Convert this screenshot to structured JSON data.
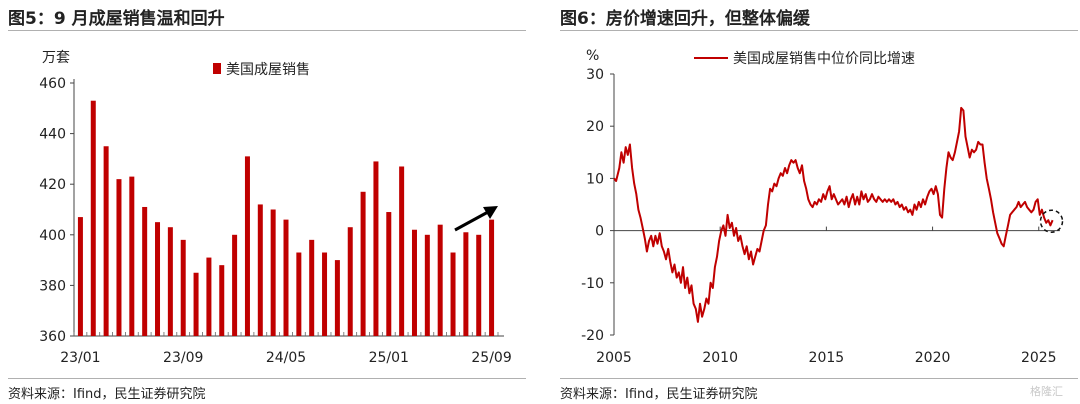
{
  "left": {
    "title": "图5：9 月成屋销售温和回升",
    "source": "资料来源：Ifind，民生证券研究院",
    "arrow_color": "#000000",
    "chart_data": {
      "type": "bar",
      "title": "",
      "ylabel": "万套",
      "ylim": [
        360,
        460
      ],
      "yticks": [
        360,
        380,
        400,
        420,
        440,
        460
      ],
      "xtick_labels": [
        "23/01",
        "23/09",
        "24/05",
        "25/01",
        "25/09"
      ],
      "xtick_indices": [
        0,
        8,
        16,
        24,
        32
      ],
      "legend_position": "top",
      "grid": false,
      "color": "#c00000",
      "categories": [
        "23/01",
        "23/02",
        "23/03",
        "23/04",
        "23/05",
        "23/06",
        "23/07",
        "23/08",
        "23/09",
        "23/10",
        "23/11",
        "23/12",
        "24/01",
        "24/02",
        "24/03",
        "24/04",
        "24/05",
        "24/06",
        "24/07",
        "24/08",
        "24/09",
        "24/10",
        "24/11",
        "24/12",
        "25/01",
        "25/02",
        "25/03",
        "25/04",
        "25/05",
        "25/06",
        "25/07",
        "25/08",
        "25/09"
      ],
      "series": [
        {
          "name": "美国成屋销售",
          "values": [
            407,
            453,
            435,
            422,
            423,
            411,
            405,
            403,
            398,
            385,
            391,
            388,
            400,
            431,
            412,
            410,
            406,
            393,
            398,
            393,
            390,
            403,
            417,
            429,
            409,
            427,
            402,
            400,
            404,
            393,
            401,
            400,
            406
          ]
        }
      ]
    }
  },
  "right": {
    "title": "图6：房价增速回升，但整体偏缓",
    "source": "资料来源：Ifind，民生证券研究院",
    "watermark": "格隆汇",
    "chart_data": {
      "type": "line",
      "title": "",
      "ylabel": "%",
      "ylim": [
        -20,
        30
      ],
      "yticks": [
        -20,
        -10,
        0,
        10,
        20,
        30
      ],
      "xlim": [
        2005,
        2026
      ],
      "xticks": [
        2005,
        2010,
        2015,
        2020,
        2025
      ],
      "legend_position": "top",
      "grid": false,
      "highlight_circle": {
        "x": 2025.6,
        "y": 1.8
      },
      "series": [
        {
          "name": "美国成屋销售中位价同比增速",
          "color": "#c00000",
          "points": [
            [
              2005.0,
              10
            ],
            [
              2005.1,
              9.5
            ],
            [
              2005.25,
              12
            ],
            [
              2005.35,
              15
            ],
            [
              2005.45,
              13
            ],
            [
              2005.55,
              16
            ],
            [
              2005.65,
              14.5
            ],
            [
              2005.75,
              16.5
            ],
            [
              2005.85,
              12
            ],
            [
              2005.95,
              9
            ],
            [
              2006.05,
              7
            ],
            [
              2006.15,
              4
            ],
            [
              2006.25,
              2.5
            ],
            [
              2006.35,
              0.5
            ],
            [
              2006.45,
              -1.5
            ],
            [
              2006.55,
              -4
            ],
            [
              2006.65,
              -2
            ],
            [
              2006.75,
              -1
            ],
            [
              2006.85,
              -3
            ],
            [
              2006.95,
              -1
            ],
            [
              2007.05,
              -2.5
            ],
            [
              2007.15,
              -0.5
            ],
            [
              2007.25,
              -3
            ],
            [
              2007.35,
              -4
            ],
            [
              2007.45,
              -5.5
            ],
            [
              2007.55,
              -3.5
            ],
            [
              2007.65,
              -6
            ],
            [
              2007.75,
              -8
            ],
            [
              2007.85,
              -6.5
            ],
            [
              2007.95,
              -9
            ],
            [
              2008.05,
              -8
            ],
            [
              2008.15,
              -10
            ],
            [
              2008.25,
              -7
            ],
            [
              2008.35,
              -11
            ],
            [
              2008.45,
              -9
            ],
            [
              2008.55,
              -12
            ],
            [
              2008.65,
              -10.5
            ],
            [
              2008.75,
              -14
            ],
            [
              2008.85,
              -15
            ],
            [
              2008.95,
              -17.5
            ],
            [
              2009.05,
              -14
            ],
            [
              2009.15,
              -16.5
            ],
            [
              2009.25,
              -15
            ],
            [
              2009.35,
              -13
            ],
            [
              2009.45,
              -14
            ],
            [
              2009.55,
              -10
            ],
            [
              2009.65,
              -11
            ],
            [
              2009.75,
              -7
            ],
            [
              2009.85,
              -5
            ],
            [
              2009.95,
              -2
            ],
            [
              2010.05,
              0
            ],
            [
              2010.15,
              1
            ],
            [
              2010.25,
              -1
            ],
            [
              2010.35,
              3
            ],
            [
              2010.45,
              0.5
            ],
            [
              2010.55,
              1.5
            ],
            [
              2010.65,
              -1
            ],
            [
              2010.75,
              0.5
            ],
            [
              2010.85,
              -2
            ],
            [
              2010.95,
              -1
            ],
            [
              2011.05,
              -3
            ],
            [
              2011.15,
              -4.5
            ],
            [
              2011.25,
              -3
            ],
            [
              2011.35,
              -5.5
            ],
            [
              2011.45,
              -4
            ],
            [
              2011.55,
              -6.5
            ],
            [
              2011.65,
              -5
            ],
            [
              2011.75,
              -3.5
            ],
            [
              2011.85,
              -4
            ],
            [
              2011.95,
              -2
            ],
            [
              2012.05,
              0
            ],
            [
              2012.15,
              1
            ],
            [
              2012.25,
              5
            ],
            [
              2012.35,
              8
            ],
            [
              2012.45,
              7.5
            ],
            [
              2012.55,
              9
            ],
            [
              2012.65,
              8.5
            ],
            [
              2012.75,
              10
            ],
            [
              2012.85,
              11
            ],
            [
              2012.95,
              10.5
            ],
            [
              2013.05,
              12
            ],
            [
              2013.15,
              11
            ],
            [
              2013.25,
              12.5
            ],
            [
              2013.35,
              13.5
            ],
            [
              2013.45,
              13
            ],
            [
              2013.55,
              13.5
            ],
            [
              2013.65,
              12
            ],
            [
              2013.75,
              11
            ],
            [
              2013.85,
              12.5
            ],
            [
              2013.95,
              9.5
            ],
            [
              2014.05,
              8
            ],
            [
              2014.15,
              6
            ],
            [
              2014.25,
              5
            ],
            [
              2014.35,
              4.5
            ],
            [
              2014.45,
              5.5
            ],
            [
              2014.55,
              5
            ],
            [
              2014.65,
              6
            ],
            [
              2014.75,
              5.5
            ],
            [
              2014.85,
              7
            ],
            [
              2014.95,
              6
            ],
            [
              2015.05,
              7.5
            ],
            [
              2015.15,
              8.5
            ],
            [
              2015.25,
              6
            ],
            [
              2015.35,
              7
            ],
            [
              2015.45,
              6
            ],
            [
              2015.55,
              5
            ],
            [
              2015.65,
              5.5
            ],
            [
              2015.75,
              6
            ],
            [
              2015.85,
              5
            ],
            [
              2015.95,
              6.5
            ],
            [
              2016.05,
              4.5
            ],
            [
              2016.15,
              6
            ],
            [
              2016.25,
              7
            ],
            [
              2016.35,
              5
            ],
            [
              2016.45,
              6.5
            ],
            [
              2016.55,
              5
            ],
            [
              2016.65,
              7.5
            ],
            [
              2016.75,
              6
            ],
            [
              2016.85,
              7
            ],
            [
              2016.95,
              5.5
            ],
            [
              2017.05,
              6
            ],
            [
              2017.15,
              7
            ],
            [
              2017.25,
              6
            ],
            [
              2017.35,
              5.5
            ],
            [
              2017.45,
              6.5
            ],
            [
              2017.55,
              6
            ],
            [
              2017.65,
              5.5
            ],
            [
              2017.75,
              6
            ],
            [
              2017.85,
              5.5
            ],
            [
              2017.95,
              6
            ],
            [
              2018.05,
              5.5
            ],
            [
              2018.15,
              6
            ],
            [
              2018.25,
              5
            ],
            [
              2018.35,
              5.5
            ],
            [
              2018.45,
              4.5
            ],
            [
              2018.55,
              5
            ],
            [
              2018.65,
              4
            ],
            [
              2018.75,
              4.5
            ],
            [
              2018.85,
              3.5
            ],
            [
              2018.95,
              4
            ],
            [
              2019.05,
              3
            ],
            [
              2019.15,
              5
            ],
            [
              2019.25,
              4
            ],
            [
              2019.35,
              5.5
            ],
            [
              2019.45,
              4.5
            ],
            [
              2019.55,
              6
            ],
            [
              2019.65,
              5
            ],
            [
              2019.75,
              6.5
            ],
            [
              2019.85,
              7.5
            ],
            [
              2019.95,
              8
            ],
            [
              2020.05,
              7
            ],
            [
              2020.15,
              8.5
            ],
            [
              2020.25,
              7
            ],
            [
              2020.35,
              3
            ],
            [
              2020.45,
              2.5
            ],
            [
              2020.55,
              8
            ],
            [
              2020.65,
              12
            ],
            [
              2020.75,
              15
            ],
            [
              2020.85,
              14
            ],
            [
              2020.95,
              13.5
            ],
            [
              2021.05,
              15
            ],
            [
              2021.15,
              17
            ],
            [
              2021.25,
              19
            ],
            [
              2021.35,
              23.5
            ],
            [
              2021.45,
              23
            ],
            [
              2021.55,
              18
            ],
            [
              2021.65,
              16
            ],
            [
              2021.75,
              14
            ],
            [
              2021.85,
              15.5
            ],
            [
              2021.95,
              15
            ],
            [
              2022.05,
              15.5
            ],
            [
              2022.15,
              17
            ],
            [
              2022.25,
              16.5
            ],
            [
              2022.35,
              16.5
            ],
            [
              2022.45,
              13
            ],
            [
              2022.55,
              10
            ],
            [
              2022.65,
              8
            ],
            [
              2022.75,
              6
            ],
            [
              2022.85,
              3.5
            ],
            [
              2022.95,
              1.5
            ],
            [
              2023.05,
              -0.5
            ],
            [
              2023.15,
              -1.5
            ],
            [
              2023.25,
              -2.5
            ],
            [
              2023.35,
              -3
            ],
            [
              2023.45,
              -1
            ],
            [
              2023.55,
              1
            ],
            [
              2023.65,
              3
            ],
            [
              2023.75,
              3.5
            ],
            [
              2023.85,
              4
            ],
            [
              2023.95,
              4.5
            ],
            [
              2024.05,
              5.5
            ],
            [
              2024.15,
              4.5
            ],
            [
              2024.25,
              5
            ],
            [
              2024.35,
              5.5
            ],
            [
              2024.45,
              4.5
            ],
            [
              2024.55,
              4
            ],
            [
              2024.65,
              3.5
            ],
            [
              2024.75,
              4
            ],
            [
              2024.85,
              5.5
            ],
            [
              2024.95,
              6
            ],
            [
              2025.05,
              3
            ],
            [
              2025.15,
              4
            ],
            [
              2025.25,
              2.5
            ],
            [
              2025.35,
              1.5
            ],
            [
              2025.45,
              2
            ],
            [
              2025.55,
              1
            ],
            [
              2025.65,
              2
            ]
          ]
        }
      ]
    }
  }
}
